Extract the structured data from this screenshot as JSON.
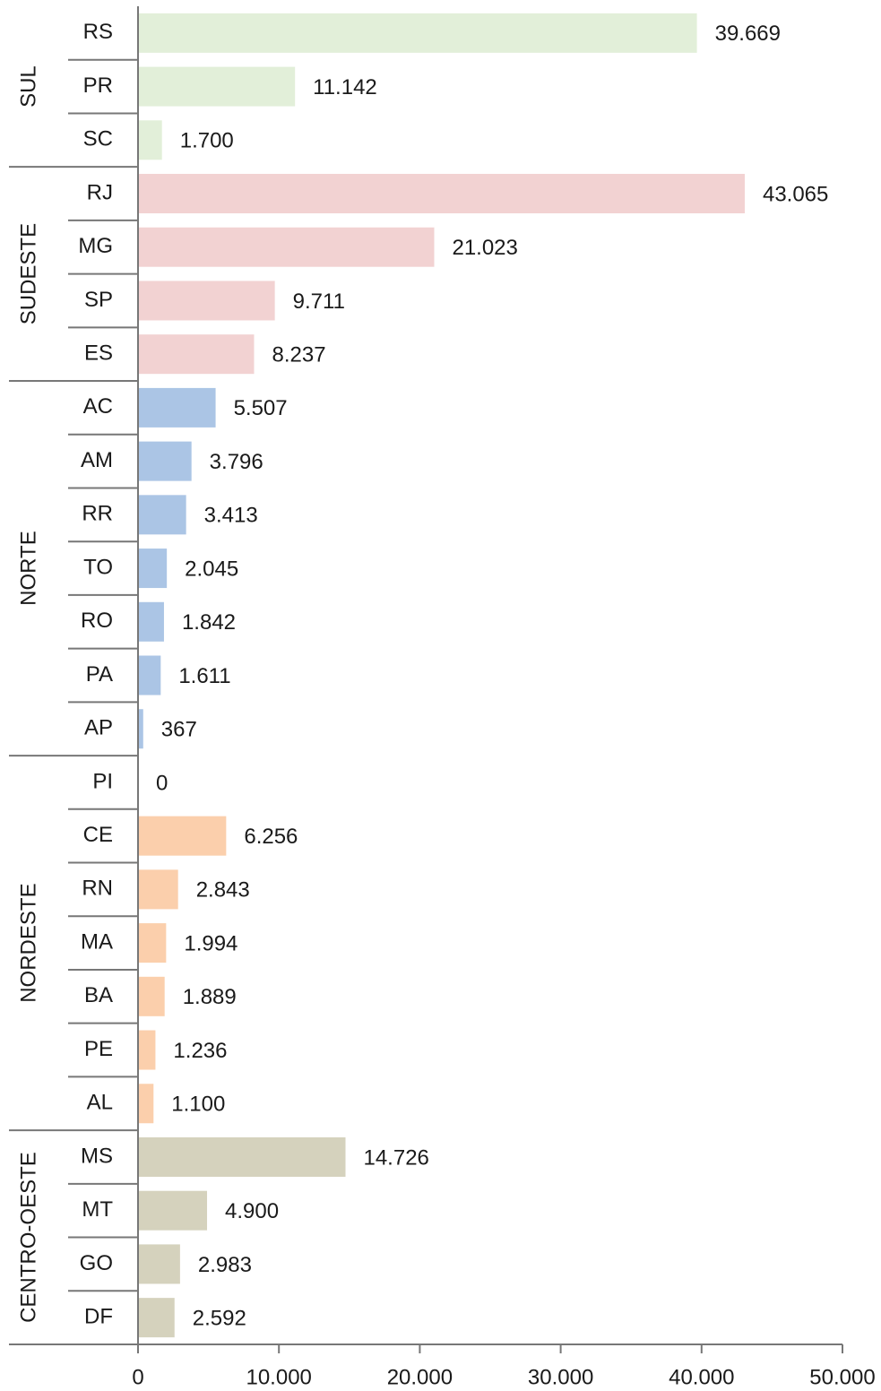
{
  "chart_data": {
    "type": "bar",
    "orientation": "horizontal",
    "groups": [
      {
        "name": "SUL",
        "color": "#e2efd9",
        "categories": [
          "RS",
          "PR",
          "SC"
        ],
        "values": [
          39669,
          11142,
          1700
        ],
        "value_labels": [
          "39.669",
          "11.142",
          "1.700"
        ]
      },
      {
        "name": "SUDESTE",
        "color": "#f2d2d2",
        "categories": [
          "RJ",
          "MG",
          "SP",
          "ES"
        ],
        "values": [
          43065,
          21023,
          9711,
          8237
        ],
        "value_labels": [
          "43.065",
          "21.023",
          "9.711",
          "8.237"
        ]
      },
      {
        "name": "NORTE",
        "color": "#abc5e5",
        "categories": [
          "AC",
          "AM",
          "RR",
          "TO",
          "RO",
          "PA",
          "AP"
        ],
        "values": [
          5507,
          3796,
          3413,
          2045,
          1842,
          1611,
          367
        ],
        "value_labels": [
          "5.507",
          "3.796",
          "3.413",
          "2.045",
          "1.842",
          "1.611",
          "367"
        ]
      },
      {
        "name": "NORDESTE",
        "color": "#fbcfac",
        "categories": [
          "PI",
          "CE",
          "RN",
          "MA",
          "BA",
          "PE",
          "AL"
        ],
        "values": [
          0,
          6256,
          2843,
          1994,
          1889,
          1236,
          1100
        ],
        "value_labels": [
          "0",
          "6.256",
          "2.843",
          "1.994",
          "1.889",
          "1.236",
          "1.100"
        ]
      },
      {
        "name": "CENTRO-OESTE",
        "color": "#d5d2bd",
        "categories": [
          "MS",
          "MT",
          "GO",
          "DF"
        ],
        "values": [
          14726,
          4900,
          2983,
          2592
        ],
        "value_labels": [
          "14.726",
          "4.900",
          "2.983",
          "2.592"
        ]
      }
    ],
    "xlim": [
      0,
      50000
    ],
    "xticks": [
      0,
      {
        "value": 10000,
        "label": "10.000"
      },
      {
        "value": 20000,
        "label": "20.000"
      },
      {
        "value": 30000,
        "label": "30.000"
      },
      {
        "value": 40000,
        "label": "40.000"
      },
      {
        "value": 50000,
        "label": "50.000"
      }
    ]
  }
}
